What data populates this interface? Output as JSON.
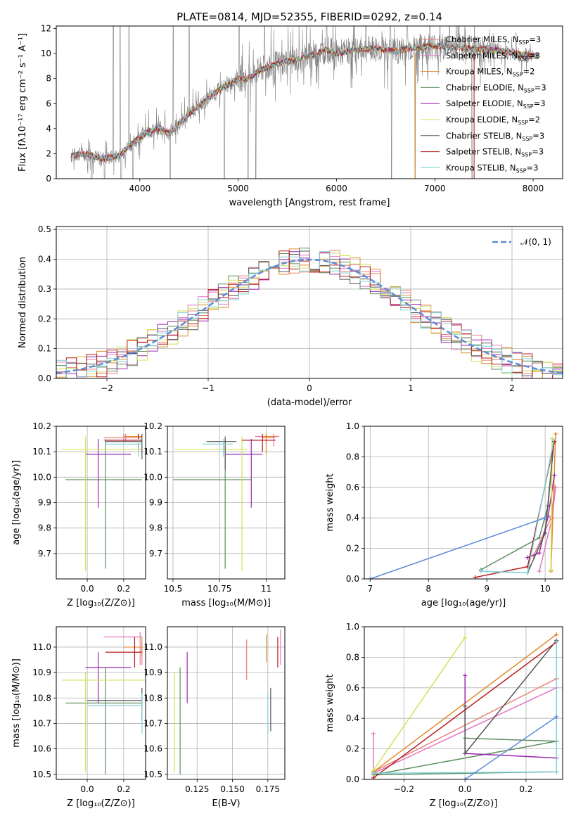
{
  "figure_title": "PLATE=0814, MJD=52355, FIBERID=0292, z=0.14",
  "colors": {
    "models": [
      "#e8837c",
      "#e377c2",
      "#e08a2a",
      "#5e8f5e",
      "#9c27b0",
      "#d4e157",
      "#555555",
      "#b71c1c",
      "#80d0d8"
    ],
    "observed": "#808080",
    "normal_curve": "#5b8bd9"
  },
  "chart_data": [
    {
      "id": "spectrum",
      "type": "line",
      "title": "PLATE=0814, MJD=52355, FIBERID=0292, z=0.14",
      "xlabel": "wavelength [Angstrom, rest frame]",
      "ylabel": "Flux [fλ10⁻¹⁷ erg cm⁻² s⁻¹ A⁻¹]",
      "xlim": [
        3150,
        8300
      ],
      "ylim": [
        0,
        12.2
      ],
      "xticks": [
        4000,
        5000,
        6000,
        7000,
        8000
      ],
      "yticks": [
        0,
        2,
        4,
        6,
        8,
        10,
        12
      ],
      "legend_position": "top-right",
      "legend": [
        "Chabrier MILES, N_SSP=3",
        "Salpeter MILES, N_SSP=3",
        "Kroupa MILES, N_SSP=2",
        "Chabrier ELODIE, N_SSP=3",
        "Salpeter ELODIE, N_SSP=3",
        "Kroupa ELODIE, N_SSP=2",
        "Chabrier STELIB, N_SSP=3",
        "Salpeter STELIB, N_SSP=3",
        "Kroupa STELIB, N_SSP=3"
      ],
      "continuum": {
        "x": [
          3300,
          3400,
          3500,
          3600,
          3700,
          3800,
          3900,
          4000,
          4100,
          4200,
          4300,
          4400,
          4500,
          4600,
          4700,
          4800,
          4900,
          5000,
          5100,
          5200,
          5300,
          5400,
          5500,
          5600,
          5700,
          5800,
          5900,
          6000,
          6200,
          6400,
          6600,
          6800,
          7000,
          7200,
          7400,
          7600,
          7800,
          8000
        ],
        "y": [
          1.8,
          2.0,
          1.9,
          1.6,
          1.7,
          1.9,
          2.7,
          3.3,
          3.8,
          4.0,
          3.6,
          4.4,
          5.2,
          5.8,
          6.4,
          7.1,
          7.5,
          8.0,
          8.0,
          8.6,
          8.9,
          9.2,
          9.4,
          9.5,
          9.8,
          10.0,
          10.3,
          10.0,
          10.3,
          10.4,
          10.2,
          10.5,
          10.6,
          10.5,
          10.4,
          10.3,
          10.0,
          9.8
        ]
      },
      "lines_down": [
        3510,
        3640,
        3810,
        3930,
        4310,
        4860,
        5100,
        5180,
        6560,
        6800,
        7380
      ],
      "lines_up": [
        3730,
        3800,
        3890,
        4340,
        4500,
        5010,
        5270,
        5900,
        6300,
        6550,
        6720,
        6950,
        7150
      ]
    },
    {
      "id": "residuals",
      "type": "line",
      "xlabel": "(data-model)/error",
      "ylabel": "Normed distribution",
      "xlim": [
        -2.5,
        2.5
      ],
      "ylim": [
        0,
        0.51
      ],
      "xticks": [
        -2,
        -1,
        0,
        1,
        2
      ],
      "yticks": [
        0.0,
        0.1,
        0.2,
        0.3,
        0.4,
        0.5
      ],
      "legend_position": "top-right",
      "legend": [
        "𝒩(0, 1)"
      ],
      "bin_width": 0.1,
      "bin_start": -2.5
    },
    {
      "id": "age_vs_Z",
      "type": "scatter",
      "xlabel": "Z [log₁₀(Z/Z⊙)]",
      "ylabel": "age  [log₁₀(age/yr)]",
      "xlim": [
        -0.17,
        0.32
      ],
      "ylim": [
        9.6,
        10.2
      ],
      "xticks": [
        0.0,
        0.2
      ],
      "yticks": [
        9.7,
        9.8,
        9.9,
        10.0,
        10.1,
        10.2
      ],
      "points": [
        {
          "x": 0.2,
          "y": 10.155,
          "x_lo": 0.09,
          "x_hi": 0.3,
          "y_lo": 10.14,
          "y_hi": 10.17
        },
        {
          "x": 0.21,
          "y": 10.145,
          "x_lo": 0.09,
          "x_hi": 0.3,
          "y_lo": 10.14,
          "y_hi": 10.17
        },
        {
          "x": 0.28,
          "y": 10.16,
          "x_lo": 0.2,
          "x_hi": 0.3,
          "y_lo": 10.11,
          "y_hi": 10.17
        },
        {
          "x": 0.1,
          "y": 9.99,
          "x_lo": -0.12,
          "x_hi": 0.3,
          "y_lo": 9.64,
          "y_hi": 10.15
        },
        {
          "x": 0.06,
          "y": 10.09,
          "x_lo": -0.01,
          "x_hi": 0.24,
          "y_lo": 9.88,
          "y_hi": 10.15
        },
        {
          "x": -0.01,
          "y": 10.11,
          "x_lo": -0.14,
          "x_hi": 0.3,
          "y_lo": 9.63,
          "y_hi": 10.16
        },
        {
          "x": 0.3,
          "y": 10.14,
          "x_lo": 0.1,
          "x_hi": 0.3,
          "y_lo": 10.07,
          "y_hi": 10.17
        },
        {
          "x": 0.28,
          "y": 10.145,
          "x_lo": 0.1,
          "x_hi": 0.3,
          "y_lo": 10.11,
          "y_hi": 10.17
        },
        {
          "x": 0.28,
          "y": 10.13,
          "x_lo": 0.1,
          "x_hi": 0.3,
          "y_lo": 10.08,
          "y_hi": 10.15
        }
      ]
    },
    {
      "id": "age_vs_mass",
      "type": "scatter",
      "xlabel": "mass [log₁₀(M/M⊙)]",
      "ylabel": "",
      "xlim": [
        10.47,
        11.1
      ],
      "ylim": [
        9.6,
        10.2
      ],
      "xticks": [
        10.5,
        10.75,
        11.0
      ],
      "yticks": [
        9.7,
        9.8,
        9.9,
        10.0,
        10.1,
        10.2
      ],
      "points": [
        {
          "x": 11.0,
          "y": 10.155,
          "x_lo": 10.98,
          "x_hi": 11.05,
          "y_lo": 10.13,
          "y_hi": 10.17
        },
        {
          "x": 11.04,
          "y": 10.16,
          "x_lo": 10.94,
          "x_hi": 11.07,
          "y_lo": 10.12,
          "y_hi": 10.17
        },
        {
          "x": 11.0,
          "y": 10.16,
          "x_lo": 10.98,
          "x_hi": 11.05,
          "y_lo": 10.09,
          "y_hi": 10.17
        },
        {
          "x": 10.78,
          "y": 9.99,
          "x_lo": 10.5,
          "x_hi": 10.92,
          "y_lo": 9.64,
          "y_hi": 10.15
        },
        {
          "x": 10.92,
          "y": 10.09,
          "x_lo": 10.78,
          "x_hi": 10.98,
          "y_lo": 9.88,
          "y_hi": 10.15
        },
        {
          "x": 10.87,
          "y": 10.11,
          "x_lo": 10.51,
          "x_hi": 10.9,
          "y_lo": 9.63,
          "y_hi": 10.16
        },
        {
          "x": 10.78,
          "y": 10.14,
          "x_lo": 10.68,
          "x_hi": 10.84,
          "y_lo": 10.03,
          "y_hi": 10.16
        },
        {
          "x": 10.98,
          "y": 10.145,
          "x_lo": 10.87,
          "x_hi": 11.05,
          "y_lo": 10.1,
          "y_hi": 10.17
        },
        {
          "x": 10.77,
          "y": 10.13,
          "x_lo": 10.66,
          "x_hi": 10.82,
          "y_lo": 10.08,
          "y_hi": 10.15
        }
      ]
    },
    {
      "id": "mass_weight_vs_age",
      "type": "line",
      "xlabel": "age  [log₁₀(age/yr)]",
      "ylabel": "mass weight",
      "xlim": [
        6.9,
        10.3
      ],
      "ylim": [
        0,
        1.0
      ],
      "xticks": [
        7,
        8,
        9,
        10
      ],
      "yticks": [
        0.0,
        0.2,
        0.4,
        0.6,
        0.8,
        1.0
      ],
      "series": [
        {
          "x": [
            9.8,
            10.1,
            10.17
          ],
          "y": [
            0.15,
            0.4,
            0.6
          ]
        },
        {
          "x": [
            9.9,
            10.12,
            10.18
          ],
          "y": [
            0.05,
            0.4,
            0.6
          ]
        },
        {
          "x": [
            10.1,
            10.18
          ],
          "y": [
            0.05,
            0.95
          ]
        },
        {
          "x": [
            8.9,
            9.9,
            10.05,
            10.15
          ],
          "y": [
            0.06,
            0.27,
            0.48,
            0.9
          ]
        },
        {
          "x": [
            9.7,
            9.9,
            10.05,
            10.16
          ],
          "y": [
            0.14,
            0.17,
            0.41,
            0.68
          ]
        },
        {
          "x": [
            10.1,
            10.12
          ],
          "y": [
            0.06,
            0.92
          ]
        },
        {
          "x": [
            9.7,
            10.0,
            10.15
          ],
          "y": [
            0.04,
            0.3,
            0.9
          ]
        },
        {
          "x": [
            8.8,
            9.7,
            10.16
          ],
          "y": [
            0.01,
            0.08,
            0.9
          ]
        },
        {
          "x": [
            8.9,
            9.7,
            10.15
          ],
          "y": [
            0.05,
            0.04,
            0.91
          ]
        },
        {
          "x": [
            7.0,
            10.0
          ],
          "y": [
            0.0,
            0.4
          ]
        }
      ]
    },
    {
      "id": "mass_vs_Z",
      "type": "scatter",
      "xlabel": "Z [log₁₀(Z/Z⊙)]",
      "ylabel": "mass [log₁₀(M/M⊙)]",
      "xlim": [
        -0.17,
        0.32
      ],
      "ylim": [
        10.48,
        11.08
      ],
      "xticks": [
        0.0,
        0.2
      ],
      "yticks": [
        10.5,
        10.6,
        10.7,
        10.8,
        10.9,
        11.0
      ],
      "points": [
        {
          "x": 0.3,
          "y": 10.98,
          "x_lo": 0.1,
          "x_hi": 0.3,
          "y_lo": 10.93,
          "y_hi": 11.02
        },
        {
          "x": 0.29,
          "y": 11.04,
          "x_lo": 0.09,
          "x_hi": 0.3,
          "y_lo": 10.93,
          "y_hi": 11.06
        },
        {
          "x": 0.3,
          "y": 11.0,
          "x_lo": 0.2,
          "x_hi": 0.3,
          "y_lo": 10.96,
          "y_hi": 11.04
        },
        {
          "x": 0.1,
          "y": 10.78,
          "x_lo": -0.12,
          "x_hi": 0.3,
          "y_lo": 10.5,
          "y_hi": 10.92
        },
        {
          "x": 0.06,
          "y": 10.92,
          "x_lo": -0.01,
          "x_hi": 0.24,
          "y_lo": 10.78,
          "y_hi": 10.98
        },
        {
          "x": -0.01,
          "y": 10.87,
          "x_lo": -0.14,
          "x_hi": 0.32,
          "y_lo": 10.51,
          "y_hi": 10.9
        },
        {
          "x": 0.3,
          "y": 10.79,
          "x_lo": 0.0,
          "x_hi": 0.3,
          "y_lo": 10.71,
          "y_hi": 10.84
        },
        {
          "x": 0.26,
          "y": 10.98,
          "x_lo": 0.1,
          "x_hi": 0.3,
          "y_lo": 10.92,
          "y_hi": 11.04
        },
        {
          "x": 0.3,
          "y": 10.77,
          "x_lo": 0.0,
          "x_hi": 0.3,
          "y_lo": 10.66,
          "y_hi": 10.82
        }
      ]
    },
    {
      "id": "mass_vs_EBV",
      "type": "scatter",
      "xlabel": "E(B-V)",
      "ylabel": "",
      "xlim": [
        0.104,
        0.187
      ],
      "ylim": [
        10.48,
        11.08
      ],
      "xticks": [
        0.125,
        0.15,
        0.175
      ],
      "ytick_labels": [
        "10.5",
        "10.6",
        "10.7",
        "10.8",
        "10.9",
        "11.0"
      ],
      "xtick_labels": [
        "0.125",
        "0.150",
        "0.175"
      ],
      "yticks": [
        10.5,
        10.6,
        10.7,
        10.8,
        10.9,
        11.0
      ],
      "points": [
        {
          "x": 0.16,
          "y": 10.95,
          "y_lo": 10.87,
          "y_hi": 11.03
        },
        {
          "x": 0.184,
          "y": 11.0,
          "y_lo": 10.93,
          "y_hi": 11.07
        },
        {
          "x": 0.174,
          "y": 11.0,
          "y_lo": 10.94,
          "y_hi": 11.05
        },
        {
          "x": 0.113,
          "y": 10.8,
          "y_lo": 10.5,
          "y_hi": 10.92
        },
        {
          "x": 0.118,
          "y": 10.9,
          "y_lo": 10.78,
          "y_hi": 10.98
        },
        {
          "x": 0.109,
          "y": 10.75,
          "y_lo": 10.51,
          "y_hi": 10.9
        },
        {
          "x": 0.177,
          "y": 10.78,
          "y_lo": 10.67,
          "y_hi": 10.84
        },
        {
          "x": 0.182,
          "y": 10.98,
          "y_lo": 10.92,
          "y_hi": 11.04
        },
        {
          "x": 0.175,
          "y": 10.75,
          "y_lo": 10.66,
          "y_hi": 10.82
        }
      ]
    },
    {
      "id": "mass_weight_vs_Z",
      "type": "line",
      "xlabel": "Z [log₁₀(Z/Z⊙)]",
      "ylabel": "mass weight",
      "xlim": [
        -0.33,
        0.32
      ],
      "ylim": [
        0,
        1.0
      ],
      "xticks": [
        -0.2,
        0.0,
        0.2
      ],
      "yticks": [
        0.0,
        0.2,
        0.4,
        0.6,
        0.8,
        1.0
      ],
      "series": [
        {
          "x": [
            -0.3,
            0.3
          ],
          "y": [
            0.05,
            0.66
          ]
        },
        {
          "x": [
            -0.3,
            -0.3,
            0.3
          ],
          "y": [
            0.3,
            0.04,
            0.6
          ]
        },
        {
          "x": [
            -0.3,
            0.3
          ],
          "y": [
            0.05,
            0.95
          ]
        },
        {
          "x": [
            0.0,
            0.3,
            -0.3,
            0.3
          ],
          "y": [
            0.27,
            0.25,
            0.03,
            0.05
          ]
        },
        {
          "x": [
            0.0,
            0.0,
            0.3
          ],
          "y": [
            0.68,
            0.17,
            0.14
          ]
        },
        {
          "x": [
            -0.3,
            0.0
          ],
          "y": [
            0.06,
            0.93
          ]
        },
        {
          "x": [
            0.0,
            0.0,
            0.3
          ],
          "y": [
            0.48,
            0.17,
            0.91
          ]
        },
        {
          "x": [
            -0.3,
            0.3
          ],
          "y": [
            0.01,
            0.9
          ]
        },
        {
          "x": [
            -0.3,
            0.3,
            0.3
          ],
          "y": [
            0.04,
            0.05,
            0.9
          ]
        },
        {
          "x": [
            0.0,
            0.3
          ],
          "y": [
            0.0,
            0.41
          ]
        }
      ]
    }
  ]
}
